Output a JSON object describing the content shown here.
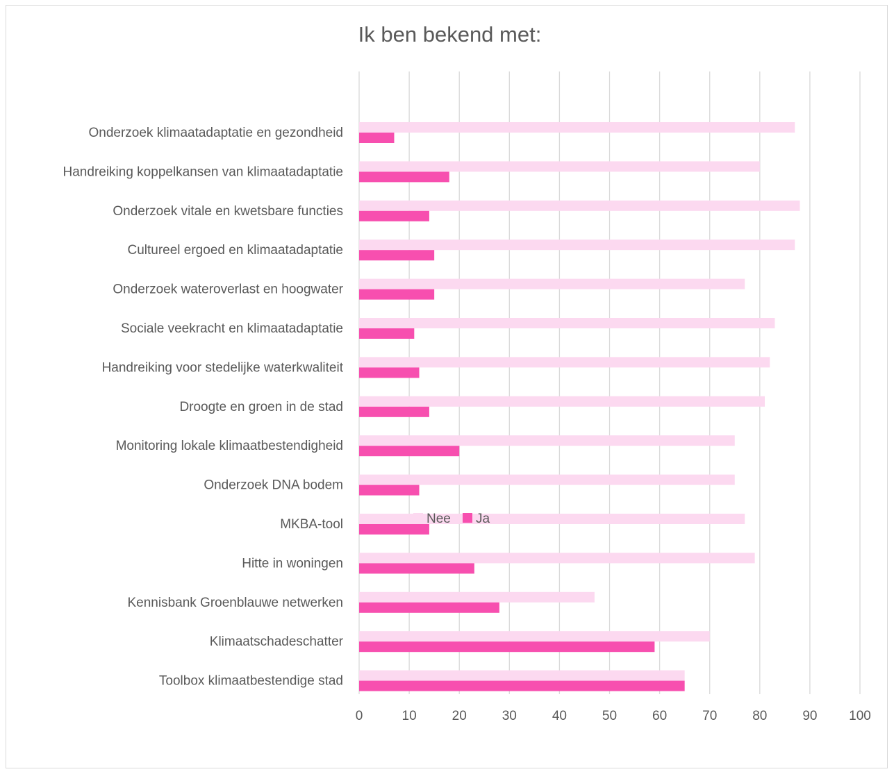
{
  "chart_data": {
    "type": "bar",
    "orientation": "horizontal",
    "title": "Ik ben bekend met:",
    "categories": [
      "Onderzoek klimaatadaptatie en gezondheid",
      "Handreiking koppelkansen van klimaatadaptatie",
      "Onderzoek vitale en kwetsbare functies",
      "Cultureel ergoed en klimaatadaptatie",
      "Onderzoek wateroverlast en hoogwater",
      "Sociale veekracht en klimaatadaptatie",
      "Handreiking voor stedelijke waterkwaliteit",
      "Droogte en groen in de stad",
      "Monitoring lokale klimaatbestendigheid",
      "Onderzoek DNA bodem",
      "MKBA-tool",
      "Hitte in woningen",
      "Kennisbank Groenblauwe netwerken",
      "Klimaatschadeschatter",
      "Toolbox klimaatbestendige stad"
    ],
    "series": [
      {
        "name": "Nee",
        "color": "#fcd9f0",
        "values": [
          87,
          80,
          88,
          87,
          77,
          83,
          82,
          81,
          75,
          75,
          77,
          79,
          47,
          70,
          65
        ]
      },
      {
        "name": "Ja",
        "color": "#f74faf",
        "values": [
          7,
          18,
          14,
          15,
          15,
          11,
          12,
          14,
          20,
          12,
          14,
          23,
          28,
          59,
          65
        ]
      }
    ],
    "xlim": [
      0,
      100
    ],
    "xticks": [
      0,
      10,
      20,
      30,
      40,
      50,
      60,
      70,
      80,
      90,
      100
    ],
    "grid": true,
    "gridline_color": "#d9d9d9",
    "legend_position": "bottom"
  }
}
